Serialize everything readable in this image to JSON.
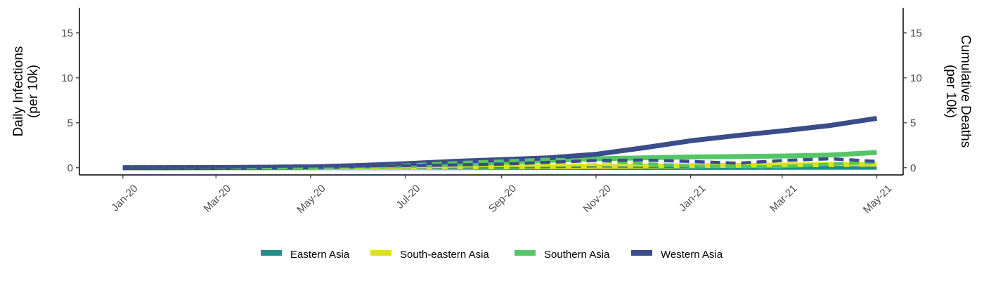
{
  "chart_data": {
    "type": "line",
    "x_tick_labels": [
      "Jan-20",
      "Mar-20",
      "May-20",
      "Jul-20",
      "Sep-20",
      "Nov-20",
      "Jan-21",
      "Mar-21",
      "May-21"
    ],
    "x_tick_dates": [
      "2020-01-01",
      "2020-03-01",
      "2020-05-01",
      "2020-07-01",
      "2020-09-01",
      "2020-11-01",
      "2021-01-01",
      "2021-03-01",
      "2021-05-01"
    ],
    "x_range": [
      "2019-12-04",
      "2021-05-18"
    ],
    "y_left": {
      "label_lines": [
        "Daily Infections",
        "(per 10k)"
      ],
      "ticks": [
        0,
        5,
        10,
        15
      ],
      "ylim": [
        -0.8,
        17.8
      ]
    },
    "y_right": {
      "label_lines": [
        "Cumulative Deaths",
        "(per 10k)"
      ],
      "ticks": [
        0,
        5,
        10,
        15
      ],
      "ylim": [
        -0.8,
        17.8
      ]
    },
    "legend": {
      "position": "bottom"
    },
    "grid": false,
    "series": [
      {
        "name": "Eastern Asia",
        "color": "#21908C",
        "solid": {
          "x": [
            "2020-01-01",
            "2020-03-01",
            "2020-05-01",
            "2020-07-01",
            "2020-09-01",
            "2020-11-01",
            "2021-01-01",
            "2021-03-01",
            "2021-05-01"
          ],
          "y": [
            0.0,
            0.0,
            0.0,
            0.0,
            0.01,
            0.02,
            0.03,
            0.04,
            0.05
          ]
        },
        "dashed": {
          "x": [
            "2020-01-01",
            "2020-02-01",
            "2020-03-01",
            "2020-04-01",
            "2020-05-01",
            "2020-06-01",
            "2020-07-01",
            "2020-08-01",
            "2020-09-01",
            "2020-10-01",
            "2020-11-01",
            "2020-12-01",
            "2021-01-01",
            "2021-02-01",
            "2021-03-01",
            "2021-04-01",
            "2021-05-01"
          ],
          "y": [
            0.0,
            0.0,
            0.0,
            0.0,
            0.02,
            0.02,
            0.05,
            0.05,
            0.05,
            0.1,
            0.2,
            0.15,
            0.15,
            0.15,
            0.15,
            0.2,
            0.3
          ]
        }
      },
      {
        "name": "South-eastern Asia",
        "color": "#DDE318",
        "solid": {
          "x": [
            "2020-01-01",
            "2020-03-01",
            "2020-05-01",
            "2020-07-01",
            "2020-09-01",
            "2020-10-01",
            "2020-11-01",
            "2021-01-01",
            "2021-03-01",
            "2021-05-01"
          ],
          "y": [
            0.0,
            0.0,
            0.01,
            0.03,
            0.08,
            0.1,
            0.15,
            0.22,
            0.3,
            0.38
          ]
        },
        "dashed": {
          "x": [
            "2020-01-01",
            "2020-03-01",
            "2020-05-01",
            "2020-07-01",
            "2020-08-01",
            "2020-09-01",
            "2020-10-01",
            "2020-11-01",
            "2020-12-01",
            "2021-01-01",
            "2021-02-01",
            "2021-03-01",
            "2021-04-01",
            "2021-05-01"
          ],
          "y": [
            0.0,
            0.0,
            0.03,
            0.1,
            0.18,
            0.25,
            0.28,
            0.35,
            0.3,
            0.3,
            0.3,
            0.3,
            0.4,
            0.3
          ]
        }
      },
      {
        "name": "Southern Asia",
        "color": "#55C667",
        "solid": {
          "x": [
            "2020-01-01",
            "2020-03-01",
            "2020-05-01",
            "2020-06-01",
            "2020-07-01",
            "2020-08-01",
            "2020-09-01",
            "2020-10-01",
            "2020-11-01",
            "2020-12-01",
            "2021-01-01",
            "2021-02-01",
            "2021-03-01",
            "2021-04-01",
            "2021-05-01"
          ],
          "y": [
            0.0,
            0.0,
            0.03,
            0.1,
            0.22,
            0.4,
            0.6,
            0.8,
            1.0,
            1.1,
            1.2,
            1.25,
            1.3,
            1.4,
            1.7
          ]
        },
        "dashed": {
          "x": [
            "2020-01-01",
            "2020-03-01",
            "2020-05-01",
            "2020-06-01",
            "2020-07-01",
            "2020-08-01",
            "2020-09-01",
            "2020-10-01",
            "2020-11-01",
            "2020-12-01",
            "2021-01-01",
            "2021-02-01",
            "2021-03-01",
            "2021-04-01",
            "2021-05-01"
          ],
          "y": [
            0.0,
            0.0,
            0.05,
            0.15,
            0.3,
            0.55,
            0.75,
            0.95,
            0.8,
            0.45,
            0.2,
            0.12,
            0.12,
            0.4,
            0.6
          ]
        }
      },
      {
        "name": "Western Asia",
        "color": "#3B4C8A",
        "solid": {
          "x": [
            "2020-01-01",
            "2020-03-01",
            "2020-05-01",
            "2020-06-01",
            "2020-07-01",
            "2020-08-01",
            "2020-09-01",
            "2020-10-01",
            "2020-11-01",
            "2020-12-01",
            "2021-01-01",
            "2021-02-01",
            "2021-03-01",
            "2021-04-01",
            "2021-05-01"
          ],
          "y": [
            0.0,
            0.02,
            0.1,
            0.25,
            0.45,
            0.7,
            0.9,
            1.1,
            1.5,
            2.2,
            3.0,
            3.6,
            4.1,
            4.7,
            5.5
          ]
        },
        "dashed": {
          "x": [
            "2020-01-01",
            "2020-03-01",
            "2020-04-01",
            "2020-05-01",
            "2020-06-01",
            "2020-07-01",
            "2020-08-01",
            "2020-09-01",
            "2020-10-01",
            "2020-11-01",
            "2020-12-01",
            "2021-01-01",
            "2021-02-01",
            "2021-03-01",
            "2021-04-01",
            "2021-05-01"
          ],
          "y": [
            0.0,
            0.05,
            0.15,
            0.2,
            0.2,
            0.22,
            0.3,
            0.4,
            0.6,
            0.8,
            0.85,
            0.7,
            0.5,
            0.8,
            1.0,
            0.7
          ]
        }
      }
    ]
  }
}
